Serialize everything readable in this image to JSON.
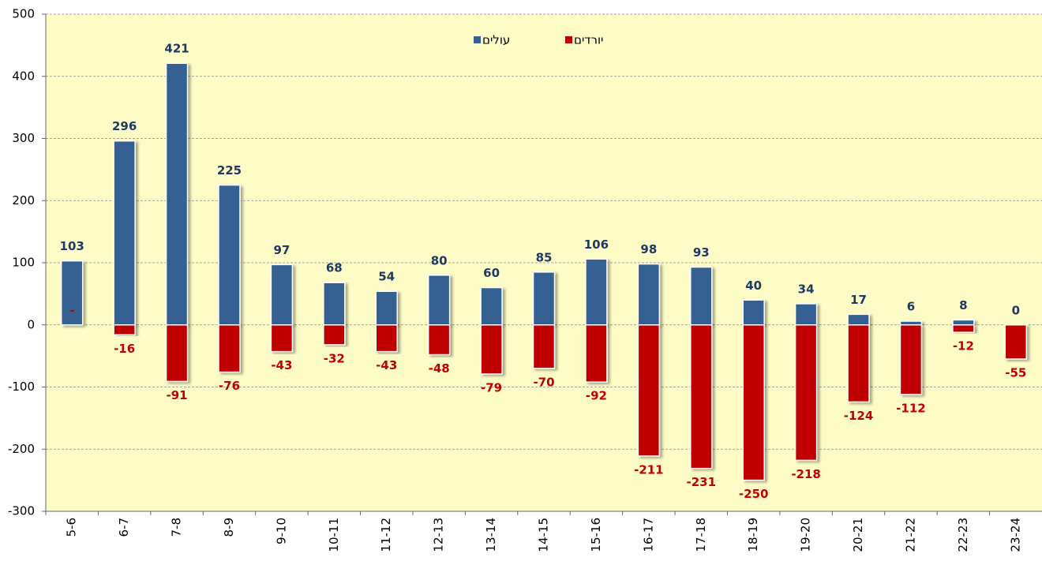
{
  "chart_data": {
    "type": "bar",
    "categories": [
      "5-6",
      "6-7",
      "7-8",
      "8-9",
      "9-10",
      "10-11",
      "11-12",
      "12-13",
      "13-14",
      "14-15",
      "15-16",
      "16-17",
      "17-18",
      "18-19",
      "19-20",
      "20-21",
      "21-22",
      "22-23",
      "23-24"
    ],
    "series": [
      {
        "name": "עולים",
        "color": "#366092",
        "label_color": "#1f3864",
        "values": [
          103,
          296,
          421,
          225,
          97,
          68,
          54,
          80,
          60,
          85,
          106,
          98,
          93,
          40,
          34,
          17,
          6,
          8,
          0
        ]
      },
      {
        "name": "יורדים",
        "color": "#c00000",
        "label_color": "#c00000",
        "values": [
          null,
          -16,
          -91,
          -76,
          -43,
          -32,
          -43,
          -48,
          -79,
          -70,
          -92,
          -211,
          -231,
          -250,
          -218,
          -124,
          -112,
          -12,
          -55
        ],
        "value_labels": [
          "-",
          null,
          null,
          null,
          null,
          null,
          null,
          null,
          null,
          null,
          null,
          null,
          null,
          null,
          null,
          null,
          null,
          null,
          null
        ]
      }
    ],
    "ylim": [
      -300,
      500
    ],
    "yticks": [
      -300,
      -200,
      -100,
      0,
      100,
      200,
      300,
      400,
      500
    ],
    "grid": true,
    "legend": "top"
  }
}
